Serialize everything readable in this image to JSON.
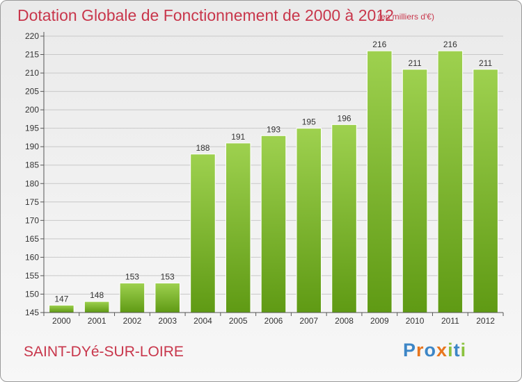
{
  "header": {
    "title": "Dotation Globale de Fonctionnement de 2000 à 2012",
    "subtitle": "(en milliers d'€)"
  },
  "footer": {
    "commune": "SAINT-DYé-SUR-LOIRE",
    "logo": "Proxiti",
    "logo_colors": [
      "#3d86c6",
      "#e8761e",
      "#3d86c6",
      "#e8761e",
      "#8cc23f",
      "#3d86c6",
      "#8cc23f"
    ]
  },
  "colors": {
    "bar_top": "#9ed14f",
    "bar_bottom": "#5f9a14",
    "text": "#c8364b",
    "grid": "#c8c8c8"
  },
  "chart_data": {
    "type": "bar",
    "categories": [
      "2000",
      "2001",
      "2002",
      "2003",
      "2004",
      "2005",
      "2006",
      "2007",
      "2008",
      "2009",
      "2010",
      "2011",
      "2012"
    ],
    "values": [
      147,
      148,
      153,
      153,
      188,
      191,
      193,
      195,
      196,
      216,
      211,
      216,
      211
    ],
    "ylim": [
      145,
      220
    ],
    "yticks": [
      145,
      150,
      155,
      160,
      165,
      170,
      175,
      180,
      185,
      190,
      195,
      200,
      205,
      210,
      215,
      220
    ],
    "grid": true,
    "data_labels": true
  }
}
